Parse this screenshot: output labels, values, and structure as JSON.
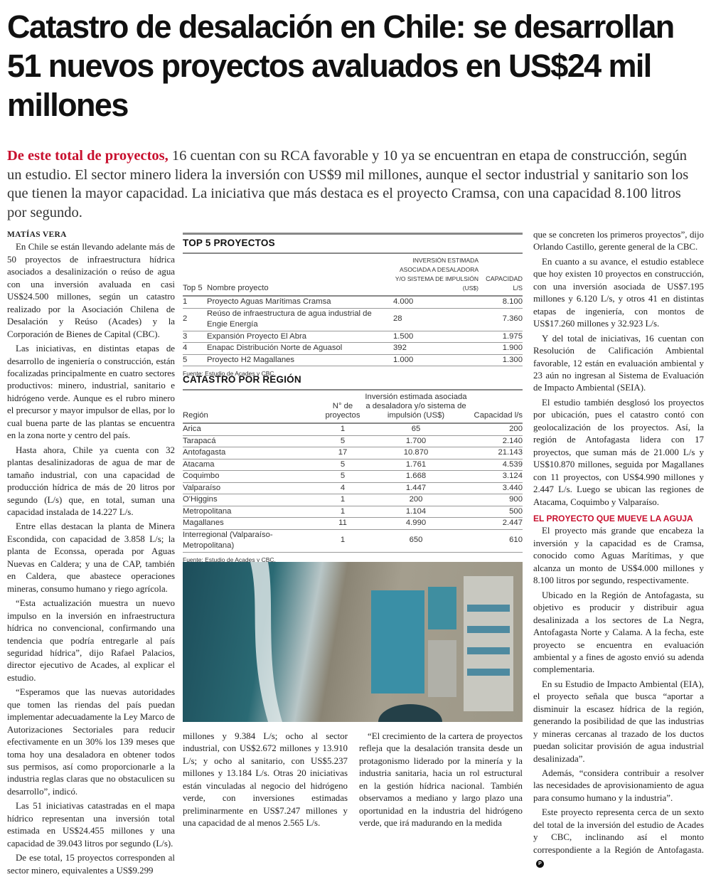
{
  "headline": "Catastro de desalación en Chile: se desarrollan 51 nuevos proyectos avaluados en US$24 mil millones",
  "lead": {
    "highlight": "De este total de proyectos,",
    "text": " 16 cuentan con su RCA favorable y 10 ya se encuentran en etapa de construcción, según un estudio. El sector minero lidera la inversión con US$9 mil millones, aunque el sector industrial y sanitario son los que tienen la mayor capacidad. La iniciativa que más destaca es el proyecto Cramsa, con una capacidad 8.100 litros por segundo."
  },
  "byline": "MATÍAS VERA",
  "left_paragraphs": [
    "En Chile se están llevando adelante más de 50 proyectos de infraestructura hídrica asociados a desalinización o reúso de agua con una inversión avaluada en casi US$24.500 millones, según un catastro realizado por la Asociación Chilena de Desalación y Reúso (Acades) y la Corporación de Bienes de Capital (CBC).",
    "Las iniciativas, en distintas etapas de desarrollo de ingeniería o construcción, están focalizadas principalmente en cuatro sectores productivos: minero, industrial, sanitario e hidrógeno verde. Aunque es el rubro minero el precursor y mayor impulsor de ellas, por lo cual buena parte de las plantas se encuentra en la zona norte y centro del país.",
    "Hasta ahora, Chile ya cuenta con 32 plantas desalinizadoras de agua de mar de tamaño industrial, con una capacidad de producción hídrica de más de 20 litros por segundo (L/s) que, en total, suman una capacidad instalada de 14.227 L/s.",
    "Entre ellas destacan la planta de Minera Escondida, con capacidad de 3.858 L/s; la planta de Econssa, operada por Aguas Nuevas en Caldera; y una de CAP, también en Caldera, que abastece operaciones mineras, consumo humano y riego agrícola.",
    "“Esta actualización muestra un nuevo impulso en la inversión en infraestructura hídrica no convencional, confirmando una tendencia que podría entregarle al país seguridad hídrica”, dijo Rafael Palacios, director ejecutivo de Acades, al explicar el estudio.",
    "“Esperamos que las nuevas autoridades que tomen las riendas del país puedan implementar adecuadamente la Ley Marco de Autorizaciones Sectoriales para reducir efectivamente en un 30% los 139 meses que toma hoy una desaladora en obtener todos sus permisos, así como proporcionarle a la industria reglas claras que no obstaculicen su desarrollo”, indicó.",
    "Las 51 iniciativas catastradas en el mapa hídrico representan una inversión total estimada en US$24.455 millones y una capacidad de 39.043 litros por segundo (L/s).",
    "De ese total, 15 proyectos corresponden al sector minero, equivalentes a US$9.299"
  ],
  "middle_col1": "millones y 9.384 L/s; ocho al sector industrial, con US$2.672 millones y 13.910 L/s; y ocho al sanitario, con US$5.237 millones y 13.184 L/s. Otras 20 iniciativas están vinculadas al negocio del hidrógeno verde, con inversiones estimadas preliminarmente en US$7.247 millones y una capacidad de al menos 2.565 L/s.",
  "middle_col2": "“El crecimiento de la cartera de proyectos refleja que la desalación transita desde un protagonismo liderado por la minería y la industria sanitaria, hacia un rol estructural en la gestión hídrica nacional. También observamos a mediano y largo plazo una oportunidad en la industria del hidrógeno verde, que irá madurando en la medida",
  "right_paragraphs": [
    "que se concreten los primeros proyectos”, dijo Orlando Castillo, gerente general de la CBC.",
    "En cuanto a su avance, el estudio establece que hoy existen 10 proyectos en construcción, con una inversión asociada de US$7.195 millones y 6.120 L/s, y otros 41 en distintas etapas de ingeniería, con montos de US$17.260 millones y 32.923 L/s.",
    "Y del total de iniciativas, 16 cuentan con Resolución de Calificación Ambiental favorable, 12 están en evaluación ambiental y 23 aún no ingresan al Sistema de Evaluación de Impacto Ambiental (SEIA).",
    "El estudio también desglosó los proyectos por ubicación, pues el catastro contó con geolocalización de los proyectos. Así, la región de Antofagasta lidera con 17 proyectos, que suman más de 21.000 L/s y US$10.870 millones, seguida por Magallanes con 11 proyectos, con US$4.990 millones y 2.447 L/s. Luego se ubican las regiones de Atacama, Coquimbo y Valparaíso."
  ],
  "subhead": "EL PROYECTO QUE MUEVE LA AGUJA",
  "right_paragraphs2": [
    "El proyecto más grande que encabeza la inversión y la capacidad es de Cramsa, conocido como Aguas Marítimas, y que alcanza un monto de US$4.000 millones y 8.100 litros por segundo, respectivamente.",
    "Ubicado en la Región de Antofagasta, su objetivo es producir y distribuir agua desalinizada a los sectores de La Negra, Antofagasta Norte y Calama. A la fecha, este proyecto se encuentra en evaluación ambiental y a fines de agosto envió su adenda complementaria.",
    "En su Estudio de Impacto Ambiental (EIA), el proyecto señala que busca “aportar a disminuir la escasez hídrica de la región, generando la posibilidad de que las industrias y mineras cercanas al trazado de los ductos puedan solicitar provisión de agua industrial desalinizada”.",
    "Además, “considera contribuir a resolver las necesidades de aprovisionamiento de agua para consumo humano y la industria”.",
    "Este proyecto representa cerca de un sexto del total de la inversión del estudio de Acades y CBC, inclinando así el monto correspondiente a la Región de Antofagasta."
  ],
  "end_mark": "P",
  "top5": {
    "title": "TOP 5 PROYECTOS",
    "headers": [
      "Top 5",
      "Nombre proyecto",
      "Inversión estimada asociada a desaladora y/o sistema de impulsión (US$)",
      "Capacidad l/s"
    ],
    "rows": [
      [
        "1",
        "Proyecto Aguas Marítimas Cramsa",
        "4.000",
        "8.100"
      ],
      [
        "2",
        "Reúso de infraestructura de agua industrial de Engie Energía",
        "28",
        "7.360"
      ],
      [
        "3",
        "Expansión Proyecto El Abra",
        "1.500",
        "1.975"
      ],
      [
        "4",
        "Enapac Distribución Norte de Aguasol",
        "392",
        "1.900"
      ],
      [
        "5",
        "Proyecto H2 Magallanes",
        "1.000",
        "1.300"
      ]
    ],
    "source": "Fuente: Estudio de Acades y CBC."
  },
  "region": {
    "title": "CATASTRO POR REGIÓN",
    "headers": [
      "Región",
      "N° de proyectos",
      "Inversión estimada asociada a desaladora y/o sistema de impulsión (US$)",
      "Capacidad l/s"
    ],
    "rows": [
      [
        "Arica",
        "1",
        "65",
        "200"
      ],
      [
        "Tarapacá",
        "5",
        "1.700",
        "2.140"
      ],
      [
        "Antofagasta",
        "17",
        "10.870",
        "21.143"
      ],
      [
        "Atacama",
        "5",
        "1.761",
        "4.539"
      ],
      [
        "Coquimbo",
        "5",
        "1.668",
        "3.124"
      ],
      [
        "Valparaíso",
        "4",
        "1.447",
        "3.440"
      ],
      [
        "O'Higgins",
        "1",
        "200",
        "900"
      ],
      [
        "Metropolitana",
        "1",
        "1.104",
        "500"
      ],
      [
        "Magallanes",
        "11",
        "4.990",
        "2.447"
      ],
      [
        "Interregional (Valparaíso- Metropolitana)",
        "1",
        "650",
        "610"
      ]
    ],
    "source": "Fuente: Estudio de Acades y CBC."
  },
  "colors": {
    "accent": "#c8102e"
  }
}
